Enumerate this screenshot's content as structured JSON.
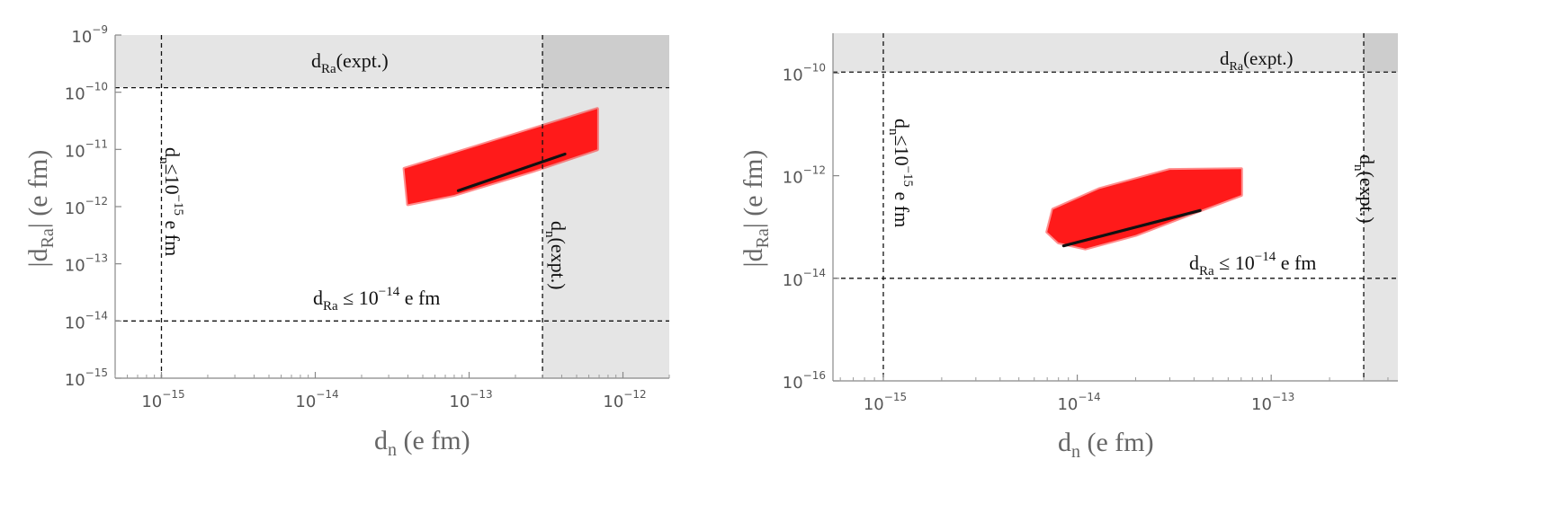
{
  "chart_data": [
    {
      "type": "scatter",
      "x_scale": "log",
      "y_scale": "log",
      "xlabel": {
        "base": "d",
        "sub": "n",
        "rest": " (e fm)"
      },
      "ylabel": {
        "pre": "|d",
        "sub": "Ra",
        "rest": "| (e fm)"
      },
      "x_tick_exponents": [
        -15,
        -14,
        -13,
        -12
      ],
      "y_tick_exponents": [
        -15,
        -14,
        -13,
        -12,
        -11,
        -10,
        -9
      ],
      "xlim": [
        5e-16,
        2e-12
      ],
      "ylim": [
        1e-15,
        1e-09
      ],
      "excluded_bands": [
        {
          "axis": "y",
          "from": 1.2e-10,
          "to": 1e-09
        },
        {
          "axis": "x",
          "from": 3e-13,
          "to": 2e-12
        }
      ],
      "reference_lines": [
        {
          "axis": "x",
          "value": 1e-15
        },
        {
          "axis": "x",
          "value": 3e-13
        },
        {
          "axis": "y",
          "value": 1e-14
        },
        {
          "axis": "y",
          "value": 1.2e-10
        }
      ],
      "scatter_region": {
        "color": "#ff1a1a",
        "polygon": [
          [
            3.8e-14,
            4.6e-12
          ],
          [
            6.8e-13,
            5.1e-11
          ],
          [
            6.8e-13,
            1e-11
          ],
          [
            2.6e-13,
            4.2e-12
          ],
          [
            8e-14,
            1.6e-12
          ],
          [
            4e-14,
            1.1e-12
          ]
        ]
      },
      "fit_line": {
        "x": [
          8.5e-14,
          4.2e-13
        ],
        "y": [
          1.9e-12,
          8.3e-12
        ]
      },
      "annotations": [
        {
          "id": "dra_expt",
          "base": "d",
          "sub": "Ra",
          "rest": "(expt.)"
        },
        {
          "id": "dn_expt",
          "base": "d",
          "sub": "n",
          "rest": "(expt.)"
        },
        {
          "id": "dn_bound",
          "pre": "d",
          "sub": "n",
          "mid": "≤10",
          "sup": "−15",
          "post": " e fm"
        },
        {
          "id": "dra_bound",
          "pre": "d",
          "sub": "Ra",
          "mid": " ≤ 10",
          "sup": "−14",
          "post": " e fm"
        }
      ]
    },
    {
      "type": "scatter",
      "x_scale": "log",
      "y_scale": "log",
      "xlabel": {
        "base": "d",
        "sub": "n",
        "rest": " (e fm)"
      },
      "ylabel": {
        "pre": "|d",
        "sub": "Ra",
        "rest": "| (e fm)"
      },
      "x_tick_exponents": [
        -15,
        -14,
        -13
      ],
      "y_tick_exponents": [
        -16,
        -14,
        -12,
        -10
      ],
      "xlim": [
        5.5e-16,
        4.5e-13
      ],
      "ylim": [
        1e-16,
        6e-10
      ],
      "excluded_bands": [
        {
          "axis": "y",
          "from": 1.05e-10,
          "to": 6e-10
        },
        {
          "axis": "x",
          "from": 3e-13,
          "to": 4.5e-13
        }
      ],
      "reference_lines": [
        {
          "axis": "x",
          "value": 1e-15
        },
        {
          "axis": "x",
          "value": 3e-13
        },
        {
          "axis": "y",
          "value": 1e-14
        },
        {
          "axis": "y",
          "value": 1.05e-10
        }
      ],
      "scatter_region": {
        "color": "#ff1a1a",
        "polygon": [
          [
            7e-15,
            8e-14
          ],
          [
            7.5e-15,
            2.2e-13
          ],
          [
            1.3e-14,
            5.5e-13
          ],
          [
            3e-14,
            1.3e-12
          ],
          [
            7e-14,
            1.35e-12
          ],
          [
            7e-14,
            4.2e-13
          ],
          [
            4e-14,
            1.9e-13
          ],
          [
            2e-14,
            7e-14
          ],
          [
            1.1e-14,
            3.8e-14
          ],
          [
            8e-15,
            5e-14
          ]
        ]
      },
      "fit_line": {
        "x": [
          8.5e-15,
          4.3e-14
        ],
        "y": [
          4.3e-14,
          2.1e-13
        ]
      },
      "annotations": [
        {
          "id": "dra_expt",
          "base": "d",
          "sub": "Ra",
          "rest": "(expt.)"
        },
        {
          "id": "dn_expt",
          "base": "d",
          "sub": "n",
          "rest": "(expt.)"
        },
        {
          "id": "dn_bound",
          "pre": "d",
          "sub": "n",
          "mid": "≤10",
          "sup": "−15",
          "post": " e fm"
        },
        {
          "id": "dra_bound",
          "pre": "d",
          "sub": "Ra",
          "mid": " ≤ 10",
          "sup": "−14",
          "post": " e fm"
        }
      ]
    }
  ]
}
